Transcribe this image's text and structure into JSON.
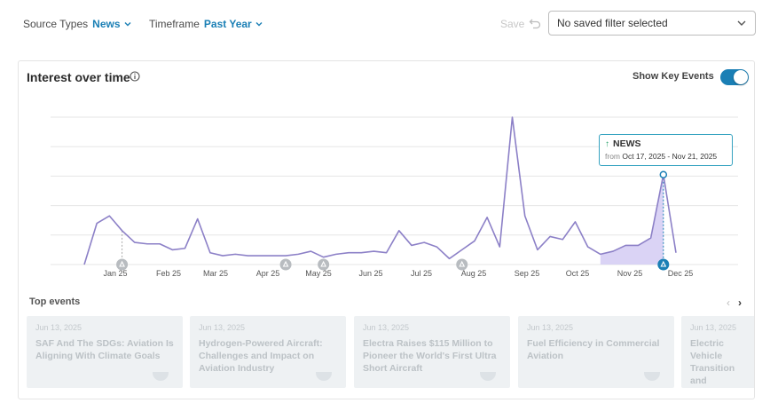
{
  "filters": {
    "source_types": {
      "label": "Source Types",
      "value": "News"
    },
    "timeframe": {
      "label": "Timeframe",
      "value": "Past Year"
    }
  },
  "toolbar": {
    "save_label": "Save",
    "undo_icon": "undo-icon",
    "saved_filter_placeholder": "No saved filter selected"
  },
  "card": {
    "title": "Interest over time",
    "info_icon": "info-icon",
    "show_key_events_label": "Show Key Events",
    "show_key_events_on": true
  },
  "chart_data": {
    "type": "line",
    "x_tick_labels": [
      "Jan 25",
      "Feb 25",
      "Mar 25",
      "Apr 25",
      "May 25",
      "Jun 25",
      "Jul 25",
      "Aug 25",
      "Sep 25",
      "Oct 25",
      "Nov 25",
      "Dec 25"
    ],
    "values": [
      0,
      28,
      33,
      23,
      15,
      14,
      14,
      10,
      11,
      31,
      8,
      6,
      7,
      6,
      6,
      6,
      6,
      7,
      9,
      5,
      7,
      8,
      8,
      9,
      8,
      23,
      13,
      15,
      12,
      4,
      10,
      16,
      32,
      12,
      100,
      33,
      10,
      19,
      17,
      29,
      12,
      7,
      9,
      13,
      13,
      18,
      61,
      8
    ],
    "ylim": [
      0,
      100
    ],
    "highlight_from_index": 41,
    "highlight_to_index": 46,
    "peak_index": 46,
    "key_event_indices": [
      3,
      46
    ],
    "muted_event_indices": [
      16,
      19,
      30
    ],
    "colors": {
      "line": "#8c80c7",
      "fill": "#d3cbf3",
      "grid": "#e6e6e6",
      "marker": "#1a7fb5"
    }
  },
  "tooltip": {
    "title": "NEWS",
    "from_label": "from",
    "range": "Oct 17, 2025 - Nov 21, 2025"
  },
  "top_events": {
    "label": "Top events",
    "items": [
      {
        "date": "Jun 13, 2025",
        "title": "SAF And The SDGs: Aviation Is Aligning With Climate Goals"
      },
      {
        "date": "Jun 13, 2025",
        "title": "Hydrogen-Powered Aircraft: Challenges and Impact on Aviation Industry"
      },
      {
        "date": "Jun 13, 2025",
        "title": "Electra Raises $115 Million to Pioneer the World's First Ultra Short Aircraft"
      },
      {
        "date": "Jun 13, 2025",
        "title": "Fuel Efficiency in Commercial Aviation"
      },
      {
        "date": "Jun 13, 2025",
        "title": "Electric Vehicle Transition and"
      }
    ]
  }
}
